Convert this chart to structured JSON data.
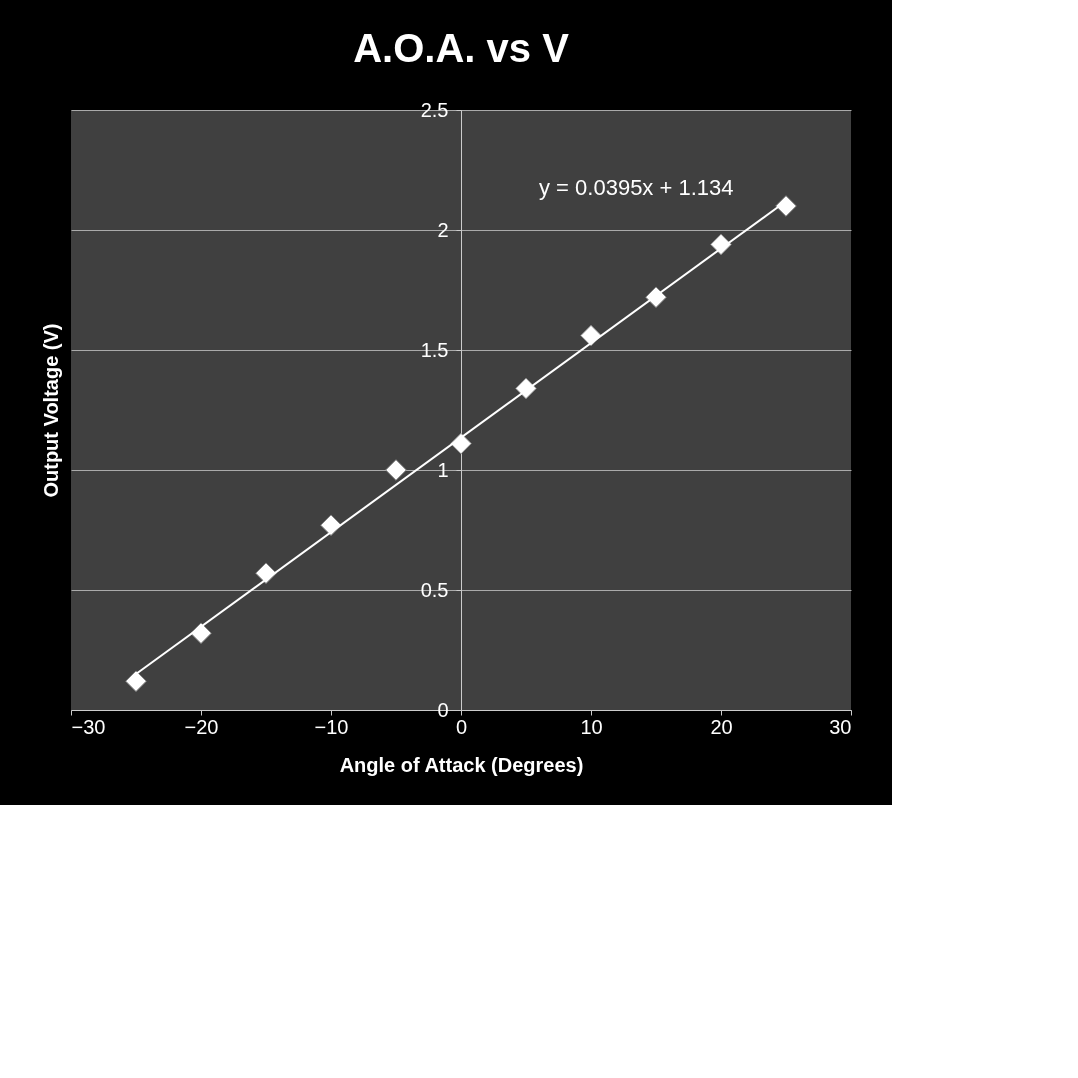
{
  "chart_data": {
    "type": "scatter",
    "title": "A.O.A. vs V",
    "xlabel": "Angle of Attack (Degrees)",
    "ylabel": "Output Voltage (V)",
    "xlim": [
      -30,
      30
    ],
    "xticks": [
      -30,
      -20,
      -10,
      0,
      10,
      20,
      30
    ],
    "ylim": [
      0,
      2.5
    ],
    "yticks": [
      0,
      0.5,
      1,
      1.5,
      2,
      2.5
    ],
    "grid": "y",
    "marker": "diamond",
    "annotations": [
      "y = 0.0395x + 1.134"
    ],
    "series": [
      {
        "type": "scatter",
        "color": "#ffffff",
        "x": [
          -25,
          -20,
          -15,
          -10,
          -5,
          0,
          5,
          10,
          15,
          20,
          25
        ],
        "values": [
          0.12,
          0.32,
          0.57,
          0.77,
          1.0,
          1.11,
          1.34,
          1.56,
          1.72,
          1.94,
          2.1
        ]
      },
      {
        "type": "line",
        "marker": "none",
        "color": "#ffffff",
        "x": [
          -25,
          25
        ],
        "values": [
          0.15,
          2.12
        ]
      }
    ]
  }
}
